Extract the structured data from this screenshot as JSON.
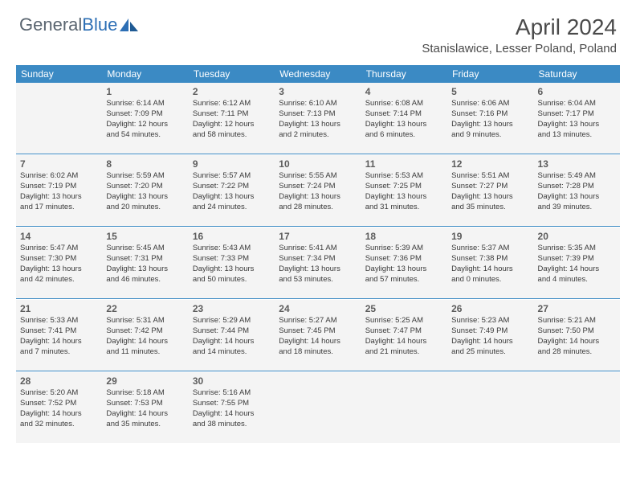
{
  "logo": {
    "text1": "General",
    "text2": "Blue"
  },
  "title": "April 2024",
  "location": "Stanislawice, Lesser Poland, Poland",
  "dayHeaders": [
    "Sunday",
    "Monday",
    "Tuesday",
    "Wednesday",
    "Thursday",
    "Friday",
    "Saturday"
  ],
  "colors": {
    "headerBg": "#3b8ac4",
    "headerText": "#ffffff",
    "cellBg": "#f4f4f4",
    "sepLine": "#3b8ac4",
    "logoGray": "#5a6570",
    "logoBlue": "#2d6fb5",
    "textColor": "#3a3a3a"
  },
  "weeks": [
    [
      null,
      {
        "n": "1",
        "sr": "Sunrise: 6:14 AM",
        "ss": "Sunset: 7:09 PM",
        "dl1": "Daylight: 12 hours",
        "dl2": "and 54 minutes."
      },
      {
        "n": "2",
        "sr": "Sunrise: 6:12 AM",
        "ss": "Sunset: 7:11 PM",
        "dl1": "Daylight: 12 hours",
        "dl2": "and 58 minutes."
      },
      {
        "n": "3",
        "sr": "Sunrise: 6:10 AM",
        "ss": "Sunset: 7:13 PM",
        "dl1": "Daylight: 13 hours",
        "dl2": "and 2 minutes."
      },
      {
        "n": "4",
        "sr": "Sunrise: 6:08 AM",
        "ss": "Sunset: 7:14 PM",
        "dl1": "Daylight: 13 hours",
        "dl2": "and 6 minutes."
      },
      {
        "n": "5",
        "sr": "Sunrise: 6:06 AM",
        "ss": "Sunset: 7:16 PM",
        "dl1": "Daylight: 13 hours",
        "dl2": "and 9 minutes."
      },
      {
        "n": "6",
        "sr": "Sunrise: 6:04 AM",
        "ss": "Sunset: 7:17 PM",
        "dl1": "Daylight: 13 hours",
        "dl2": "and 13 minutes."
      }
    ],
    [
      {
        "n": "7",
        "sr": "Sunrise: 6:02 AM",
        "ss": "Sunset: 7:19 PM",
        "dl1": "Daylight: 13 hours",
        "dl2": "and 17 minutes."
      },
      {
        "n": "8",
        "sr": "Sunrise: 5:59 AM",
        "ss": "Sunset: 7:20 PM",
        "dl1": "Daylight: 13 hours",
        "dl2": "and 20 minutes."
      },
      {
        "n": "9",
        "sr": "Sunrise: 5:57 AM",
        "ss": "Sunset: 7:22 PM",
        "dl1": "Daylight: 13 hours",
        "dl2": "and 24 minutes."
      },
      {
        "n": "10",
        "sr": "Sunrise: 5:55 AM",
        "ss": "Sunset: 7:24 PM",
        "dl1": "Daylight: 13 hours",
        "dl2": "and 28 minutes."
      },
      {
        "n": "11",
        "sr": "Sunrise: 5:53 AM",
        "ss": "Sunset: 7:25 PM",
        "dl1": "Daylight: 13 hours",
        "dl2": "and 31 minutes."
      },
      {
        "n": "12",
        "sr": "Sunrise: 5:51 AM",
        "ss": "Sunset: 7:27 PM",
        "dl1": "Daylight: 13 hours",
        "dl2": "and 35 minutes."
      },
      {
        "n": "13",
        "sr": "Sunrise: 5:49 AM",
        "ss": "Sunset: 7:28 PM",
        "dl1": "Daylight: 13 hours",
        "dl2": "and 39 minutes."
      }
    ],
    [
      {
        "n": "14",
        "sr": "Sunrise: 5:47 AM",
        "ss": "Sunset: 7:30 PM",
        "dl1": "Daylight: 13 hours",
        "dl2": "and 42 minutes."
      },
      {
        "n": "15",
        "sr": "Sunrise: 5:45 AM",
        "ss": "Sunset: 7:31 PM",
        "dl1": "Daylight: 13 hours",
        "dl2": "and 46 minutes."
      },
      {
        "n": "16",
        "sr": "Sunrise: 5:43 AM",
        "ss": "Sunset: 7:33 PM",
        "dl1": "Daylight: 13 hours",
        "dl2": "and 50 minutes."
      },
      {
        "n": "17",
        "sr": "Sunrise: 5:41 AM",
        "ss": "Sunset: 7:34 PM",
        "dl1": "Daylight: 13 hours",
        "dl2": "and 53 minutes."
      },
      {
        "n": "18",
        "sr": "Sunrise: 5:39 AM",
        "ss": "Sunset: 7:36 PM",
        "dl1": "Daylight: 13 hours",
        "dl2": "and 57 minutes."
      },
      {
        "n": "19",
        "sr": "Sunrise: 5:37 AM",
        "ss": "Sunset: 7:38 PM",
        "dl1": "Daylight: 14 hours",
        "dl2": "and 0 minutes."
      },
      {
        "n": "20",
        "sr": "Sunrise: 5:35 AM",
        "ss": "Sunset: 7:39 PM",
        "dl1": "Daylight: 14 hours",
        "dl2": "and 4 minutes."
      }
    ],
    [
      {
        "n": "21",
        "sr": "Sunrise: 5:33 AM",
        "ss": "Sunset: 7:41 PM",
        "dl1": "Daylight: 14 hours",
        "dl2": "and 7 minutes."
      },
      {
        "n": "22",
        "sr": "Sunrise: 5:31 AM",
        "ss": "Sunset: 7:42 PM",
        "dl1": "Daylight: 14 hours",
        "dl2": "and 11 minutes."
      },
      {
        "n": "23",
        "sr": "Sunrise: 5:29 AM",
        "ss": "Sunset: 7:44 PM",
        "dl1": "Daylight: 14 hours",
        "dl2": "and 14 minutes."
      },
      {
        "n": "24",
        "sr": "Sunrise: 5:27 AM",
        "ss": "Sunset: 7:45 PM",
        "dl1": "Daylight: 14 hours",
        "dl2": "and 18 minutes."
      },
      {
        "n": "25",
        "sr": "Sunrise: 5:25 AM",
        "ss": "Sunset: 7:47 PM",
        "dl1": "Daylight: 14 hours",
        "dl2": "and 21 minutes."
      },
      {
        "n": "26",
        "sr": "Sunrise: 5:23 AM",
        "ss": "Sunset: 7:49 PM",
        "dl1": "Daylight: 14 hours",
        "dl2": "and 25 minutes."
      },
      {
        "n": "27",
        "sr": "Sunrise: 5:21 AM",
        "ss": "Sunset: 7:50 PM",
        "dl1": "Daylight: 14 hours",
        "dl2": "and 28 minutes."
      }
    ],
    [
      {
        "n": "28",
        "sr": "Sunrise: 5:20 AM",
        "ss": "Sunset: 7:52 PM",
        "dl1": "Daylight: 14 hours",
        "dl2": "and 32 minutes."
      },
      {
        "n": "29",
        "sr": "Sunrise: 5:18 AM",
        "ss": "Sunset: 7:53 PM",
        "dl1": "Daylight: 14 hours",
        "dl2": "and 35 minutes."
      },
      {
        "n": "30",
        "sr": "Sunrise: 5:16 AM",
        "ss": "Sunset: 7:55 PM",
        "dl1": "Daylight: 14 hours",
        "dl2": "and 38 minutes."
      },
      null,
      null,
      null,
      null
    ]
  ]
}
